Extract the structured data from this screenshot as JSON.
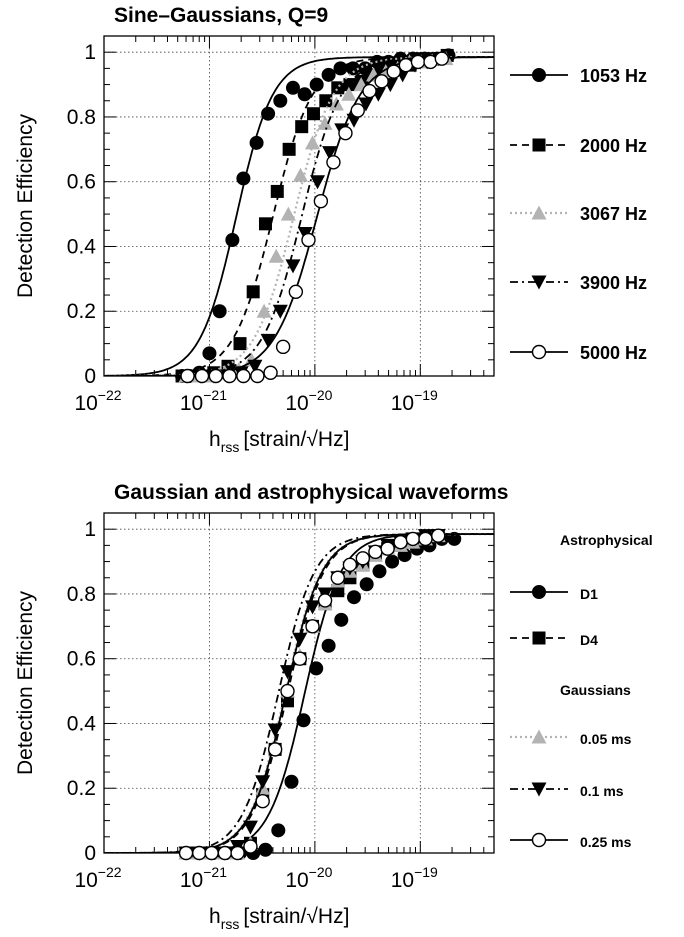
{
  "chart_data": [
    {
      "type": "scatter",
      "title": "Sine–Gaussians, Q=9",
      "ylabel": "Detection Efficiency",
      "xlabel": {
        "main": "h",
        "sub": "rss",
        "unit": "[strain/√Hz]"
      },
      "xscale": "log",
      "xlim": [
        1e-22,
        5e-19
      ],
      "ylim": [
        0,
        1.05
      ],
      "xticks": [
        {
          "base": "10",
          "exp": "−22"
        },
        {
          "base": "10",
          "exp": "−21"
        },
        {
          "base": "10",
          "exp": "−20"
        },
        {
          "base": "10",
          "exp": "−19"
        }
      ],
      "yticks": [
        "0",
        "0.2",
        "0.4",
        "0.6",
        "0.8",
        "1"
      ],
      "grid": true,
      "legend_placement": "right",
      "series": [
        {
          "name": "1053 Hz",
          "marker": "filled-circle",
          "dash": "solid",
          "color": "#000000",
          "fit": {
            "x50": 1.8e-21,
            "width": 0.55
          },
          "x": [
            5.5e-22,
            6.5e-22,
            8e-22,
            1e-21,
            1.25e-21,
            1.65e-21,
            2.1e-21,
            2.8e-21,
            3.6e-21,
            4.7e-21,
            6.2e-21,
            8e-21,
            1.04e-20,
            1.35e-20,
            1.75e-20,
            2.3e-20,
            3e-20,
            3.9e-20,
            5e-20,
            6.5e-20,
            8.5e-20,
            1.1e-19,
            1.45e-19,
            1.85e-19
          ],
          "y": [
            0.0,
            0.0,
            0.01,
            0.07,
            0.2,
            0.42,
            0.61,
            0.72,
            0.81,
            0.85,
            0.89,
            0.87,
            0.9,
            0.93,
            0.95,
            0.95,
            0.95,
            0.97,
            0.97,
            0.98,
            0.98,
            0.98,
            0.98,
            0.99
          ]
        },
        {
          "name": "2000 Hz",
          "marker": "filled-square",
          "dash": "dash",
          "color": "#000000",
          "fit": {
            "x50": 4e-21,
            "width": 0.6
          },
          "x": [
            5.5e-22,
            7e-22,
            9e-22,
            1.1e-21,
            1.5e-21,
            1.95e-21,
            2.6e-21,
            3.4e-21,
            4.4e-21,
            5.7e-21,
            7.5e-21,
            9.7e-21,
            1.27e-20,
            1.65e-20,
            2.15e-20,
            2.8e-20,
            3.7e-20,
            4.8e-20,
            6.2e-20,
            8e-20,
            1.05e-19,
            1.35e-19,
            1.8e-19
          ],
          "y": [
            0.0,
            0.0,
            0.0,
            0.01,
            0.03,
            0.1,
            0.26,
            0.47,
            0.57,
            0.7,
            0.77,
            0.81,
            0.85,
            0.89,
            0.9,
            0.91,
            0.93,
            0.94,
            0.96,
            0.96,
            0.98,
            0.98,
            0.99
          ]
        },
        {
          "name": "3067 Hz",
          "marker": "filled-triangle-up",
          "dash": "dot",
          "color": "#b3b3b3",
          "fit": {
            "x50": 6.3e-21,
            "width": 0.6
          },
          "x": [
            6e-22,
            8e-22,
            1.05e-21,
            1.4e-21,
            1.9e-21,
            2.5e-21,
            3.3e-21,
            4.3e-21,
            5.6e-21,
            7.3e-21,
            9.5e-21,
            1.25e-20,
            1.6e-20,
            2.1e-20,
            2.75e-20,
            3.6e-20,
            4.7e-20,
            6.1e-20,
            7.9e-20,
            1.03e-19,
            1.33e-19,
            1.75e-19
          ],
          "y": [
            0.0,
            0.0,
            0.0,
            0.01,
            0.02,
            0.05,
            0.2,
            0.37,
            0.5,
            0.62,
            0.72,
            0.78,
            0.84,
            0.87,
            0.9,
            0.93,
            0.94,
            0.95,
            0.97,
            0.97,
            0.98,
            0.98
          ]
        },
        {
          "name": "3900 Hz",
          "marker": "filled-triangle-down",
          "dash": "dashdot",
          "color": "#000000",
          "fit": {
            "x50": 7.5e-21,
            "width": 0.6
          },
          "x": [
            6e-22,
            8.2e-22,
            1.1e-21,
            1.5e-21,
            2e-21,
            2.7e-21,
            3.6e-21,
            4.7e-21,
            6.2e-21,
            8.1e-21,
            1.06e-20,
            1.38e-20,
            1.8e-20,
            2.35e-20,
            3.05e-20,
            4e-20,
            5.2e-20,
            6.8e-20,
            8.9e-20,
            1.16e-19,
            1.5e-19
          ],
          "y": [
            0.0,
            0.0,
            0.0,
            0.0,
            0.01,
            0.03,
            0.11,
            0.2,
            0.34,
            0.44,
            0.6,
            0.69,
            0.76,
            0.79,
            0.84,
            0.87,
            0.9,
            0.93,
            0.96,
            0.97,
            0.98
          ]
        },
        {
          "name": "5000 Hz",
          "marker": "open-circle",
          "dash": "solid",
          "color": "#000000",
          "fit": {
            "x50": 1.05e-20,
            "width": 0.65
          },
          "x": [
            6.2e-22,
            8.5e-22,
            1.15e-21,
            1.55e-21,
            2.1e-21,
            2.85e-21,
            3.8e-21,
            5e-21,
            6.6e-21,
            8.7e-21,
            1.14e-20,
            1.5e-20,
            1.95e-20,
            2.55e-20,
            3.3e-20,
            4.3e-20,
            5.6e-20,
            7.3e-20,
            9.5e-20,
            1.25e-19,
            1.6e-19
          ],
          "y": [
            0.0,
            0.0,
            0.0,
            0.0,
            0.0,
            0.0,
            0.01,
            0.09,
            0.26,
            0.42,
            0.54,
            0.66,
            0.75,
            0.82,
            0.88,
            0.91,
            0.94,
            0.96,
            0.97,
            0.97,
            0.98
          ]
        }
      ]
    },
    {
      "type": "scatter",
      "title": "Gaussian and astrophysical waveforms",
      "ylabel": "Detection Efficiency",
      "xlabel": {
        "main": "h",
        "sub": "rss",
        "unit": "[strain/√Hz]"
      },
      "xscale": "log",
      "xlim": [
        1e-22,
        5e-19
      ],
      "ylim": [
        0,
        1.05
      ],
      "xticks": [
        {
          "base": "10",
          "exp": "−22"
        },
        {
          "base": "10",
          "exp": "−21"
        },
        {
          "base": "10",
          "exp": "−20"
        },
        {
          "base": "10",
          "exp": "−19"
        }
      ],
      "yticks": [
        "0",
        "0.2",
        "0.4",
        "0.6",
        "0.8",
        "1"
      ],
      "grid": true,
      "legend_placement": "right",
      "legend_groups": [
        "Astrophysical",
        "Gaussians"
      ],
      "series": [
        {
          "name": "D1",
          "group": "Astrophysical",
          "marker": "filled-circle",
          "dash": "solid",
          "color": "#000000",
          "fit": {
            "x50": 8e-21,
            "width": 0.55
          },
          "x": [
            6e-22,
            8e-22,
            1.1e-21,
            1.45e-21,
            1.95e-21,
            2.6e-21,
            3.4e-21,
            4.5e-21,
            6e-21,
            7.8e-21,
            1.03e-20,
            1.35e-20,
            1.78e-20,
            2.35e-20,
            3.1e-20,
            4.1e-20,
            5.4e-20,
            7.1e-20,
            9.3e-20,
            1.22e-19,
            1.6e-19,
            2.1e-19
          ],
          "y": [
            0.0,
            0.0,
            0.0,
            0.0,
            0.0,
            0.0,
            0.01,
            0.07,
            0.22,
            0.41,
            0.57,
            0.64,
            0.72,
            0.79,
            0.83,
            0.87,
            0.9,
            0.92,
            0.94,
            0.95,
            0.97,
            0.97
          ]
        },
        {
          "name": "D4",
          "group": "Astrophysical",
          "marker": "filled-square",
          "dash": "dash",
          "color": "#000000",
          "fit": {
            "x50": 5.5e-21,
            "width": 0.55
          },
          "x": [
            6e-22,
            8e-22,
            1.05e-21,
            1.4e-21,
            1.85e-21,
            2.45e-21,
            3.2e-21,
            4.2e-21,
            5.5e-21,
            7.2e-21,
            9.5e-21,
            1.25e-20,
            1.65e-20,
            2.15e-20,
            2.85e-20,
            3.75e-20,
            4.9e-20,
            6.5e-20,
            8.5e-20,
            1.12e-19,
            1.48e-19
          ],
          "y": [
            0.0,
            0.0,
            0.0,
            0.0,
            0.0,
            0.03,
            0.18,
            0.32,
            0.47,
            0.6,
            0.7,
            0.77,
            0.81,
            0.85,
            0.89,
            0.92,
            0.94,
            0.95,
            0.96,
            0.97,
            0.98
          ]
        },
        {
          "name": "0.05 ms",
          "group": "Gaussians",
          "marker": "filled-triangle-up",
          "dash": "dot",
          "color": "#b3b3b3",
          "fit": {
            "x50": 5.2e-21,
            "width": 0.55
          },
          "x": [
            6e-22,
            8e-22,
            1.05e-21,
            1.4e-21,
            1.85e-21,
            2.45e-21,
            3.2e-21,
            4.2e-21,
            5.5e-21,
            7.2e-21,
            9.5e-21,
            1.25e-20,
            1.65e-20,
            2.15e-20,
            2.85e-20,
            3.75e-20,
            4.9e-20,
            6.5e-20,
            8.5e-20,
            1.12e-19,
            1.48e-19
          ],
          "y": [
            0.0,
            0.0,
            0.0,
            0.0,
            0.0,
            0.03,
            0.2,
            0.33,
            0.5,
            0.61,
            0.7,
            0.77,
            0.84,
            0.87,
            0.89,
            0.92,
            0.94,
            0.95,
            0.96,
            0.97,
            0.98
          ]
        },
        {
          "name": "0.1 ms",
          "group": "Gaussians",
          "marker": "filled-triangle-down",
          "dash": "dashdot",
          "color": "#000000",
          "fit": {
            "x50": 4.5e-21,
            "width": 0.55
          },
          "x": [
            6e-22,
            8e-22,
            1.05e-21,
            1.4e-21,
            1.85e-21,
            2.45e-21,
            3.2e-21,
            4.2e-21,
            5.5e-21,
            7.2e-21,
            9.5e-21,
            1.25e-20,
            1.65e-20,
            2.15e-20,
            2.85e-20,
            3.75e-20,
            4.9e-20,
            6.5e-20,
            8.5e-20,
            1.12e-19,
            1.48e-19
          ],
          "y": [
            0.0,
            0.0,
            0.0,
            0.0,
            0.02,
            0.08,
            0.22,
            0.38,
            0.56,
            0.66,
            0.76,
            0.8,
            0.85,
            0.88,
            0.9,
            0.93,
            0.95,
            0.96,
            0.97,
            0.98,
            0.98
          ]
        },
        {
          "name": "0.25 ms",
          "group": "Gaussians",
          "marker": "open-circle",
          "dash": "solid",
          "color": "#000000",
          "fit": {
            "x50": 5.3e-21,
            "width": 0.55
          },
          "x": [
            6e-22,
            8e-22,
            1.05e-21,
            1.4e-21,
            1.85e-21,
            2.45e-21,
            3.2e-21,
            4.2e-21,
            5.5e-21,
            7.2e-21,
            9.5e-21,
            1.25e-20,
            1.65e-20,
            2.15e-20,
            2.85e-20,
            3.75e-20,
            4.9e-20,
            6.5e-20,
            8.5e-20,
            1.12e-19,
            1.48e-19
          ],
          "y": [
            0.0,
            0.0,
            0.0,
            0.0,
            0.0,
            0.02,
            0.16,
            0.32,
            0.5,
            0.6,
            0.7,
            0.78,
            0.85,
            0.89,
            0.91,
            0.93,
            0.94,
            0.96,
            0.97,
            0.97,
            0.98
          ]
        }
      ]
    }
  ]
}
